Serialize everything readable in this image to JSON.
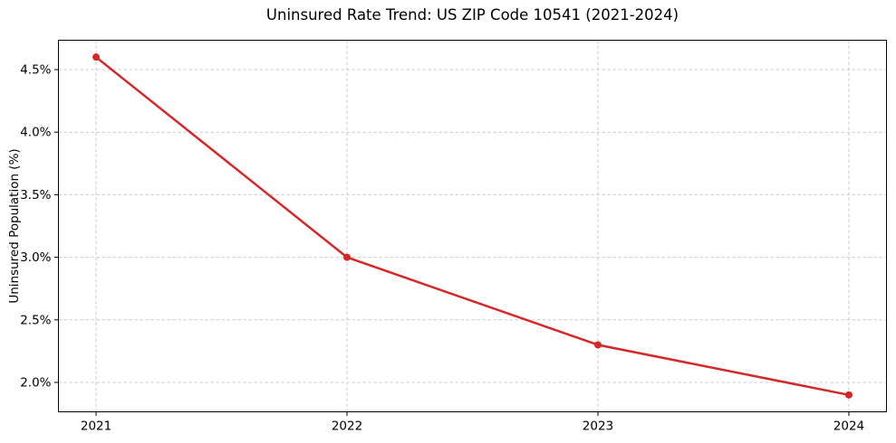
{
  "chart_data": {
    "type": "line",
    "title": "Uninsured Rate Trend: US ZIP Code 10541 (2021-2024)",
    "ylabel": "Uninsured Population (%)",
    "xlabel": "",
    "x": [
      2021,
      2022,
      2023,
      2024
    ],
    "xtick_labels": [
      "2021",
      "2022",
      "2023",
      "2024"
    ],
    "values": [
      4.6,
      3.0,
      2.3,
      1.9
    ],
    "yticks": [
      2.0,
      2.5,
      3.0,
      3.5,
      4.0,
      4.5
    ],
    "ytick_labels": [
      "2.0%",
      "2.5%",
      "3.0%",
      "3.5%",
      "4.0%",
      "4.5%"
    ],
    "ylim": [
      1.765,
      4.735
    ],
    "xlim": [
      2020.85,
      2024.15
    ],
    "grid": true,
    "legend": "none",
    "marker": "circle",
    "colors": {
      "line": "#d62728",
      "grid": "#cccccc",
      "axis": "#000000",
      "text": "#000000",
      "background": "#ffffff"
    }
  }
}
